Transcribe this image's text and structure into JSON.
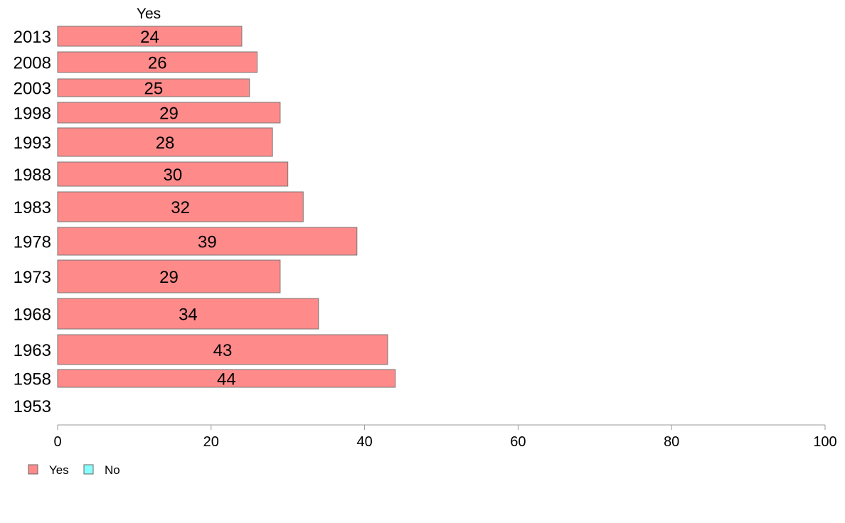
{
  "chart_data": {
    "type": "bar",
    "orientation": "horizontal",
    "stacked": true,
    "categories": [
      "2013",
      "2008",
      "2003",
      "1998",
      "1993",
      "1988",
      "1983",
      "1978",
      "1973",
      "1968",
      "1963",
      "1958",
      "1953"
    ],
    "series": [
      {
        "name": "Yes",
        "color": "#ff8a8a",
        "values": [
          24,
          26,
          25,
          29,
          28,
          30,
          32,
          39,
          29,
          34,
          43,
          44,
          null
        ]
      },
      {
        "name": "No",
        "color": "#8affff",
        "values": [
          null,
          null,
          null,
          null,
          null,
          null,
          null,
          null,
          null,
          null,
          null,
          null,
          null
        ]
      }
    ],
    "header_label": "Yes",
    "xlim": [
      0,
      100
    ],
    "xticks": [
      0,
      20,
      40,
      60,
      80,
      100
    ],
    "grid": false,
    "legend": {
      "position": "bottom-left",
      "entries": [
        "Yes",
        "No"
      ]
    }
  }
}
